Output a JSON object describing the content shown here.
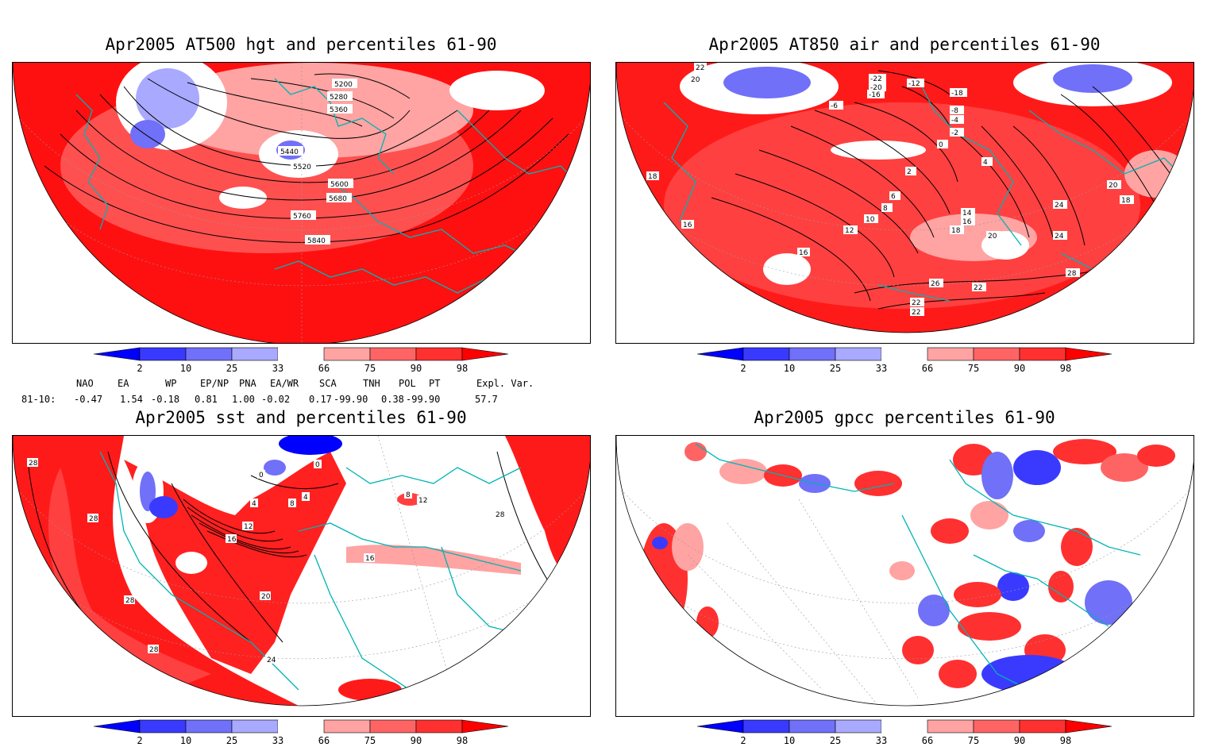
{
  "panels": [
    {
      "title": "Apr2005 AT500 hgt and percentiles 61-90",
      "contour_labels": [
        "5200",
        "5280",
        "5360",
        "5440",
        "5520",
        "5600",
        "5680",
        "5760",
        "5840"
      ]
    },
    {
      "title": "Apr2005 AT850 air and percentiles 61-90",
      "contour_labels": [
        "22",
        "20",
        "18",
        "16",
        "16",
        "-22",
        "-20",
        "-18",
        "-16",
        "-12",
        "-6",
        "-8",
        "-4",
        "-2",
        "0",
        "2",
        "4",
        "6",
        "8",
        "10",
        "12",
        "14",
        "16",
        "18",
        "20",
        "22",
        "24",
        "24",
        "26",
        "28",
        "22",
        "22",
        "20",
        "18"
      ]
    },
    {
      "title": "Apr2005 sst and percentiles 61-90",
      "contour_labels": [
        "28",
        "28",
        "28",
        "28",
        "0",
        "0",
        "4",
        "8",
        "12",
        "16",
        "20",
        "24",
        "4",
        "12",
        "8",
        "16",
        "28"
      ]
    },
    {
      "title": "Apr2005 gpcc percentiles 61-90",
      "contour_labels": []
    }
  ],
  "colorbar": {
    "labels": [
      "2",
      "10",
      "25",
      "33",
      "66",
      "75",
      "90",
      "98"
    ],
    "colors": {
      "below2": "#0000ff",
      "c2_10": "#3a3aff",
      "c10_25": "#7070f8",
      "c25_33": "#a9a9ff",
      "c33_66": "#ffffff",
      "c66_75": "#ffa3a3",
      "c75_90": "#ff6464",
      "c90_98": "#ff3030",
      "above98": "#ff0000"
    }
  },
  "indices": {
    "header": [
      "NAO",
      "EA",
      "WP",
      "EP/NP",
      "PNA",
      "EA/WR",
      "SCA",
      "TNH",
      "POL",
      "PT",
      "Expl. Var."
    ],
    "row_label": "81-10:",
    "values": [
      "-0.47",
      "1.54",
      "-0.18",
      "0.81",
      "1.00",
      "-0.02",
      "0.17",
      "-99.90",
      "0.38",
      "-99.90",
      "57.7"
    ]
  },
  "colors": {
    "coast": "#00b4b4",
    "grid": "#999999"
  }
}
